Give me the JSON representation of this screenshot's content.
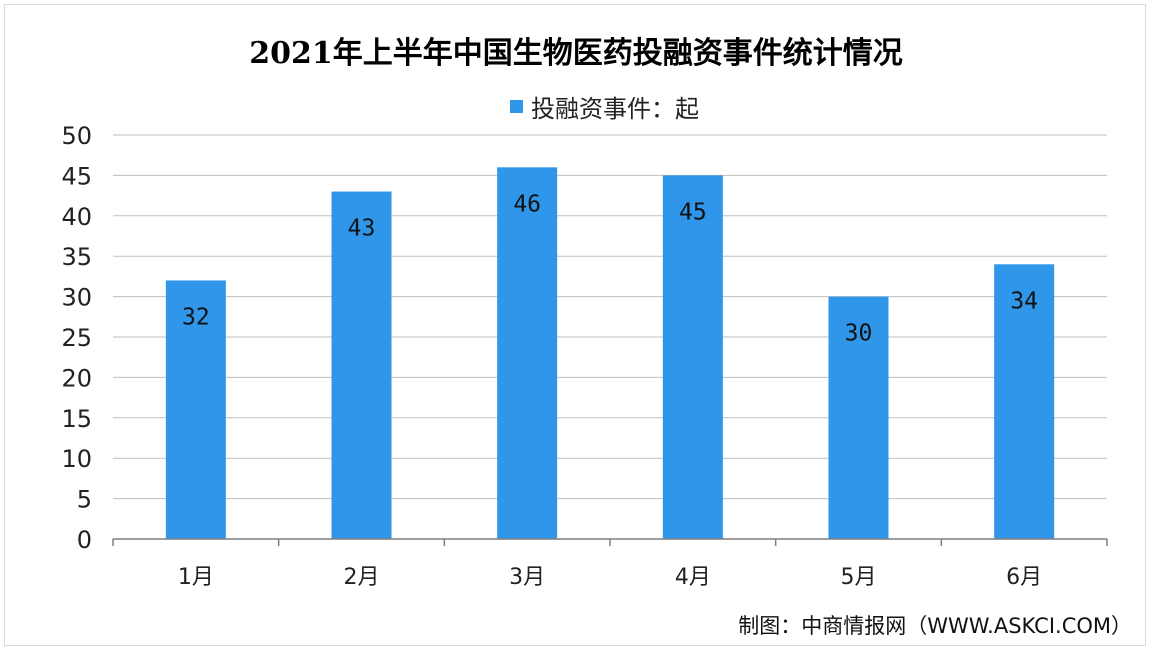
{
  "chart_data": {
    "type": "bar",
    "title": "2021年上半年中国生物医药投融资事件统计情况",
    "categories": [
      "1月",
      "2月",
      "3月",
      "4月",
      "5月",
      "6月"
    ],
    "series": [
      {
        "name": "投融资事件：起",
        "values": [
          32,
          43,
          46,
          45,
          30,
          34
        ]
      }
    ],
    "ylim": [
      0,
      50
    ],
    "y_ticks": [
      0,
      5,
      10,
      15,
      20,
      25,
      30,
      35,
      40,
      45,
      50
    ],
    "grid": true,
    "legend_position": "top",
    "data_labels": true,
    "bar_color": "#2f96ea"
  },
  "source": "制图：中商情报网（WWW.ASKCI.COM）"
}
